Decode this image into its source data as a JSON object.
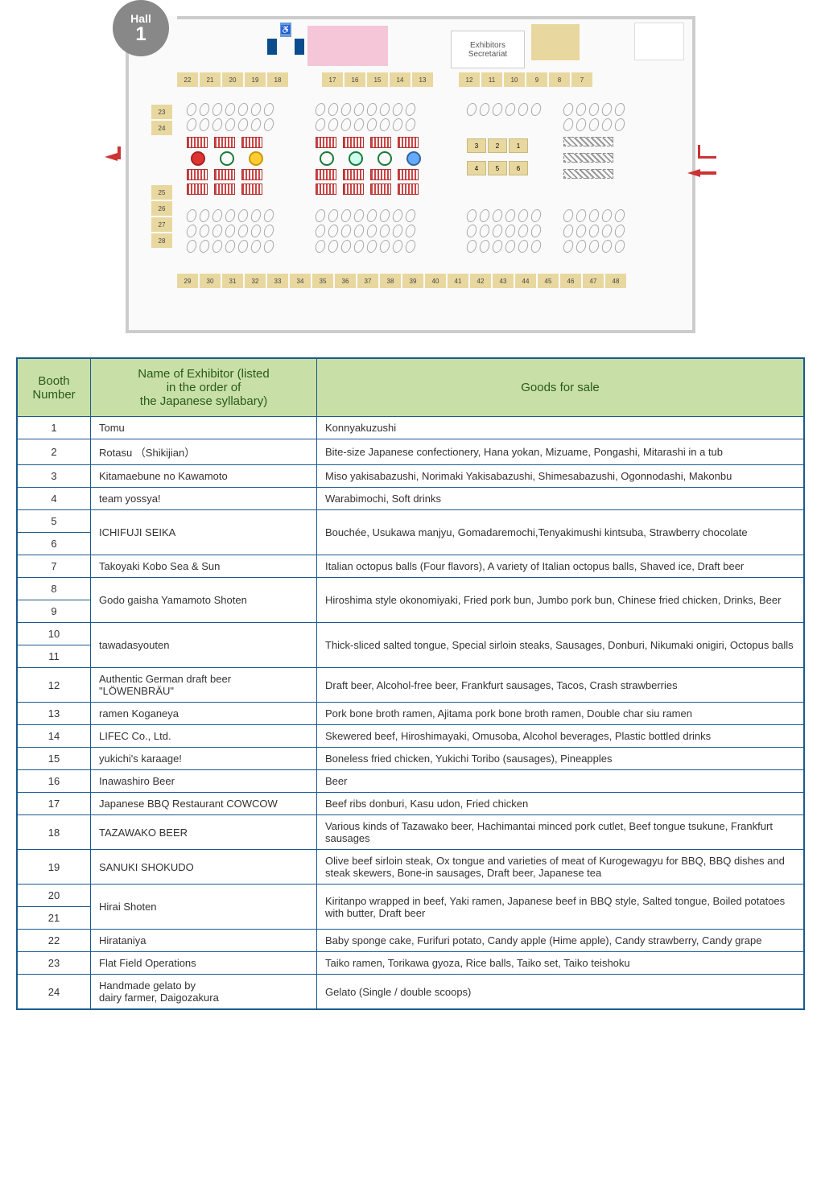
{
  "hall": {
    "label": "Hall",
    "number": "1"
  },
  "secretariat": {
    "line1": "Exhibitors",
    "line2": "Secretariat"
  },
  "booth_row_top_left": [
    "22",
    "21",
    "20",
    "19",
    "18"
  ],
  "booth_row_top_mid": [
    "17",
    "16",
    "15",
    "14",
    "13"
  ],
  "booth_row_top_right": [
    "12",
    "11",
    "10",
    "9",
    "8",
    "7"
  ],
  "booth_col_left_upper": [
    "23",
    "24"
  ],
  "booth_col_left_lower": [
    "25",
    "26",
    "27",
    "28"
  ],
  "center_booths_right": [
    "3",
    "2",
    "1"
  ],
  "center_booths_right2": [
    "4",
    "5",
    "6"
  ],
  "booth_row_bottom": [
    "29",
    "30",
    "31",
    "32",
    "33",
    "34",
    "35",
    "36",
    "37",
    "38",
    "39",
    "40",
    "41",
    "42",
    "43",
    "44",
    "45",
    "46",
    "47",
    "48"
  ],
  "table": {
    "headers": {
      "booth": "Booth\nNumber",
      "name": "Name of Exhibitor (listed\nin the order of\nthe Japanese syllabary)",
      "goods": "Goods for sale"
    },
    "rows": [
      {
        "nums": [
          "1"
        ],
        "name": "Tomu",
        "goods": "Konnyakuzushi"
      },
      {
        "nums": [
          "2"
        ],
        "name": "Rotasu （Shikijian）",
        "goods": "Bite-size Japanese confectionery, Hana yokan, Mizuame, Pongashi, Mitarashi in a tub"
      },
      {
        "nums": [
          "3"
        ],
        "name": "Kitamaebune no Kawamoto",
        "goods": "Miso yakisabazushi, Norimaki Yakisabazushi, Shimesabazushi, Ogonnodashi, Makonbu"
      },
      {
        "nums": [
          "4"
        ],
        "name": "team yossya!",
        "goods": "Warabimochi, Soft drinks"
      },
      {
        "nums": [
          "5",
          "6"
        ],
        "name": "ICHIFUJI SEIKA",
        "goods": "Bouchée, Usukawa manjyu, Gomadaremochi,Tenyakimushi kintsuba, Strawberry chocolate"
      },
      {
        "nums": [
          "7"
        ],
        "name": "Takoyaki Kobo Sea & Sun",
        "goods": "Italian octopus balls (Four flavors), A variety of Italian octopus balls, Shaved ice, Draft beer",
        "goods_class": "small-text"
      },
      {
        "nums": [
          "8",
          "9"
        ],
        "name": "Godo gaisha Yamamoto Shoten",
        "goods": "Hiroshima style okonomiyaki, Fried pork bun, Jumbo pork bun, Chinese fried chicken, Drinks, Beer"
      },
      {
        "nums": [
          "10",
          "11"
        ],
        "name": "tawadasyouten",
        "goods": "Thick-sliced salted tongue, Special sirloin steaks, Sausages, Donburi, Nikumaki onigiri, Octopus balls"
      },
      {
        "nums": [
          "12"
        ],
        "name": "Authentic German draft beer \"LÖWENBRÄU\"",
        "name_class": "xs-text",
        "goods": "Draft beer, Alcohol-free beer, Frankfurt sausages, Tacos, Crash strawberries"
      },
      {
        "nums": [
          "13"
        ],
        "name": "ramen Koganeya",
        "goods": "Pork bone broth ramen, Ajitama pork bone broth ramen, Double char siu ramen",
        "goods_class": "small-text"
      },
      {
        "nums": [
          "14"
        ],
        "name": "LIFEC Co., Ltd.",
        "goods": "Skewered beef, Hiroshimayaki, Omusoba, Alcohol beverages, Plastic bottled drinks",
        "goods_class": "small-text"
      },
      {
        "nums": [
          "15"
        ],
        "name": "yukichi's karaage!",
        "goods": "Boneless fried chicken, Yukichi Toribo (sausages), Pineapples"
      },
      {
        "nums": [
          "16"
        ],
        "name": "Inawashiro Beer",
        "goods": "Beer"
      },
      {
        "nums": [
          "17"
        ],
        "name": "Japanese BBQ Restaurant COWCOW",
        "goods": "Beef ribs donburi, Kasu udon, Fried chicken"
      },
      {
        "nums": [
          "18"
        ],
        "name": "TAZAWAKO BEER",
        "goods": "Various kinds of Tazawako beer, Hachimantai minced pork cutlet, Beef tongue tsukune, Frankfurt sausages",
        "goods_class": "xs-text"
      },
      {
        "nums": [
          "19"
        ],
        "name": "SANUKI SHOKUDO",
        "goods": "Olive beef sirloin steak, Ox tongue and varieties of meat of Kurogewagyu for BBQ, BBQ dishes and steak skewers, Bone-in sausages, Draft beer, Japanese tea"
      },
      {
        "nums": [
          "20",
          "21"
        ],
        "name": "Hirai Shoten",
        "goods": "Kiritanpo wrapped in beef, Yaki ramen, Japanese beef in BBQ style, Salted tongue, Boiled potatoes with butter, Draft beer"
      },
      {
        "nums": [
          "22"
        ],
        "name": "Hirataniya",
        "goods": "Baby sponge cake, Furifuri potato, Candy apple (Hime apple), Candy strawberry, Candy grape",
        "goods_class": "small-text"
      },
      {
        "nums": [
          "23"
        ],
        "name": "Flat Field Operations",
        "goods": "Taiko ramen, Torikawa gyoza, Rice balls, Taiko set, Taiko teishoku"
      },
      {
        "nums": [
          "24"
        ],
        "name": "Handmade gelato by\ndairy farmer, Daigozakura",
        "goods": "Gelato (Single / double scoops)"
      }
    ]
  },
  "colors": {
    "border": "#1a5a8e",
    "header_bg": "#c8e0a8",
    "header_fg": "#2a5a1a",
    "booth_bg": "#e8d89f"
  }
}
